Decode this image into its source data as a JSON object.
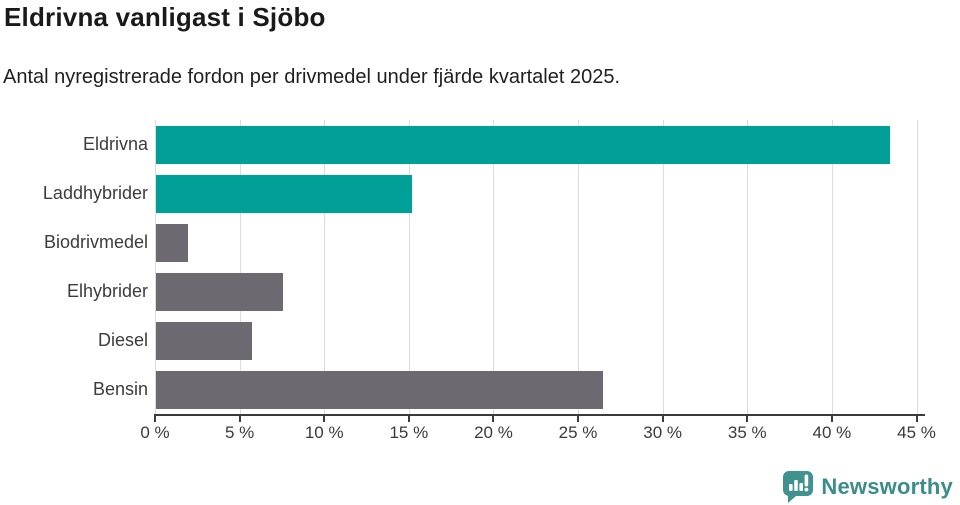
{
  "title": "Eldrivna vanligast i Sjöbo",
  "subtitle": "Antal nyregistrerade fordon per drivmedel under fjärde kvartalet 2025.",
  "chart_data": {
    "type": "bar",
    "orientation": "horizontal",
    "title": "Eldrivna vanligast i Sjöbo",
    "subtitle": "Antal nyregistrerade fordon per drivmedel under fjärde kvartalet 2025.",
    "categories": [
      "Eldrivna",
      "Laddhybrider",
      "Biodrivmedel",
      "Elhybrider",
      "Diesel",
      "Bensin"
    ],
    "values": [
      43.4,
      15.1,
      1.9,
      7.5,
      5.7,
      26.4
    ],
    "unit": "%",
    "bar_colors": [
      "#00a099",
      "#00a099",
      "#6c6a70",
      "#6c6a70",
      "#6c6a70",
      "#6c6a70"
    ],
    "highlight_color": "#00a099",
    "default_color": "#6c6a70",
    "xlabel": "",
    "ylabel": "",
    "xlim": [
      0,
      45
    ],
    "x_tick_values": [
      0,
      5,
      10,
      15,
      20,
      25,
      30,
      35,
      40,
      45
    ],
    "x_tick_labels": [
      "0 %",
      "5 %",
      "10 %",
      "15 %",
      "20 %",
      "25 %",
      "30 %",
      "35 %",
      "40 %",
      "45 %"
    ],
    "grid": true,
    "gridline_color": "#dcdcdc",
    "axis_color": "#3b3b3b",
    "legend": "none"
  },
  "footer": {
    "brand": "Newsworthy",
    "brand_color": "#3a8d8a",
    "icon": "newsworthy-speech-bubble-barchart-icon"
  }
}
